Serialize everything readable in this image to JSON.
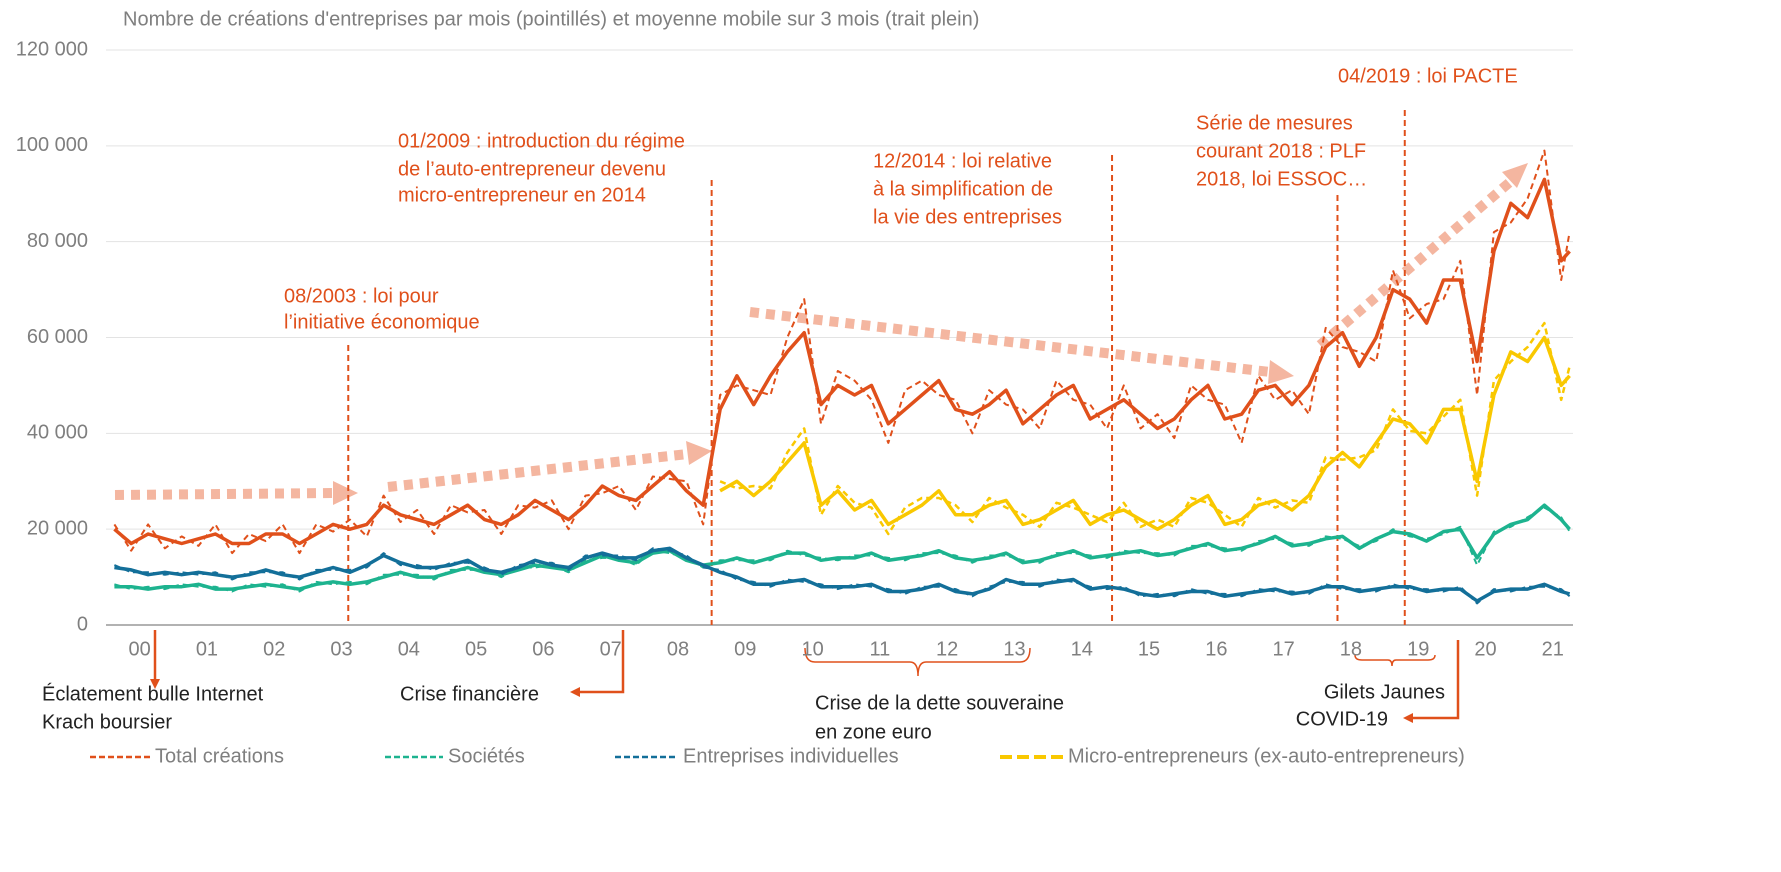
{
  "chart_data": {
    "type": "line",
    "title": "Nombre de créations d'entreprises par mois (pointillés) et moyenne mobile sur 3 mois (trait plein)",
    "x": [
      2000.125,
      2000.375,
      2000.625,
      2000.875,
      2001.125,
      2001.375,
      2001.625,
      2001.875,
      2002.125,
      2002.375,
      2002.625,
      2002.875,
      2003.125,
      2003.375,
      2003.625,
      2003.875,
      2004.125,
      2004.375,
      2004.625,
      2004.875,
      2005.125,
      2005.375,
      2005.625,
      2005.875,
      2006.125,
      2006.375,
      2006.625,
      2006.875,
      2007.125,
      2007.375,
      2007.625,
      2007.875,
      2008.125,
      2008.375,
      2008.625,
      2008.875,
      2009.125,
      2009.375,
      2009.625,
      2009.875,
      2010.125,
      2010.375,
      2010.625,
      2010.875,
      2011.125,
      2011.375,
      2011.625,
      2011.875,
      2012.125,
      2012.375,
      2012.625,
      2012.875,
      2013.125,
      2013.375,
      2013.625,
      2013.875,
      2014.125,
      2014.375,
      2014.625,
      2014.875,
      2015.125,
      2015.375,
      2015.625,
      2015.875,
      2016.125,
      2016.375,
      2016.625,
      2016.875,
      2017.125,
      2017.375,
      2017.625,
      2017.875,
      2018.125,
      2018.375,
      2018.625,
      2018.875,
      2019.125,
      2019.375,
      2019.625,
      2019.875,
      2020.125,
      2020.375,
      2020.625,
      2020.875,
      2021.125,
      2021.375,
      2021.625,
      2021.75
    ],
    "xlim": [
      2000,
      2021.8
    ],
    "xticks": [
      {
        "value": 2000.5,
        "label": "00"
      },
      {
        "value": 2001.5,
        "label": "01"
      },
      {
        "value": 2002.5,
        "label": "02"
      },
      {
        "value": 2003.5,
        "label": "03"
      },
      {
        "value": 2004.5,
        "label": "04"
      },
      {
        "value": 2005.5,
        "label": "05"
      },
      {
        "value": 2006.5,
        "label": "06"
      },
      {
        "value": 2007.5,
        "label": "07"
      },
      {
        "value": 2008.5,
        "label": "08"
      },
      {
        "value": 2009.5,
        "label": "09"
      },
      {
        "value": 2010.5,
        "label": "10"
      },
      {
        "value": 2011.5,
        "label": "11"
      },
      {
        "value": 2012.5,
        "label": "12"
      },
      {
        "value": 2013.5,
        "label": "13"
      },
      {
        "value": 2014.5,
        "label": "14"
      },
      {
        "value": 2015.5,
        "label": "15"
      },
      {
        "value": 2016.5,
        "label": "16"
      },
      {
        "value": 2017.5,
        "label": "17"
      },
      {
        "value": 2018.5,
        "label": "18"
      },
      {
        "value": 2019.5,
        "label": "19"
      },
      {
        "value": 2020.5,
        "label": "20"
      },
      {
        "value": 2021.5,
        "label": "21"
      }
    ],
    "ylim": [
      0,
      120000
    ],
    "yticks": [
      0,
      {
        "value": 20000,
        "label": "20 000"
      },
      {
        "value": 40000,
        "label": "40 000"
      },
      {
        "value": 60000,
        "label": "60 000"
      },
      {
        "value": 80000,
        "label": "80 000"
      },
      {
        "value": 100000,
        "label": "100 000"
      },
      {
        "value": 120000,
        "label": "120 000"
      }
    ],
    "grid": true,
    "series": [
      {
        "name": "Total créations",
        "color": "#e0501b",
        "values": [
          21000,
          15500,
          21000,
          16000,
          18500,
          16500,
          21000,
          15000,
          19000,
          17500,
          21000,
          15000,
          21000,
          19500,
          22000,
          18500,
          27000,
          21500,
          24000,
          19000,
          25000,
          23500,
          24000,
          19000,
          25000,
          24500,
          26000,
          20000,
          27000,
          27500,
          29000,
          24000,
          31000,
          30500,
          30000,
          21000,
          48000,
          50000,
          49000,
          48000,
          60000,
          68000,
          42000,
          53000,
          51000,
          47000,
          38000,
          49000,
          51000,
          48000,
          47000,
          40000,
          49000,
          46000,
          45000,
          41000,
          51000,
          47000,
          46000,
          41000,
          50000,
          41000,
          44000,
          39000,
          50000,
          47000,
          46000,
          38000,
          52000,
          47000,
          49000,
          44000,
          62000,
          58000,
          57000,
          55000,
          74000,
          64000,
          67000,
          68000,
          76000,
          48000,
          82000,
          84000,
          89000,
          99000,
          72000,
          82000
        ],
        "moving_average": [
          20000,
          17000,
          19000,
          18000,
          17000,
          18000,
          19000,
          17000,
          17000,
          19000,
          19000,
          17000,
          19000,
          21000,
          20000,
          21000,
          25000,
          23000,
          22000,
          21000,
          23000,
          25000,
          22000,
          21000,
          23000,
          26000,
          24000,
          22000,
          25000,
          29000,
          27000,
          26000,
          29000,
          32000,
          28000,
          25000,
          45000,
          52000,
          46000,
          52000,
          57000,
          61000,
          46000,
          50000,
          48000,
          50000,
          42000,
          45000,
          48000,
          51000,
          45000,
          44000,
          46000,
          49000,
          42000,
          45000,
          48000,
          50000,
          43000,
          45000,
          47000,
          44000,
          41000,
          43000,
          47000,
          50000,
          43000,
          44000,
          49000,
          50000,
          46000,
          50000,
          58000,
          61000,
          54000,
          60000,
          70000,
          68000,
          63000,
          72000,
          72000,
          55000,
          78000,
          88000,
          85000,
          93000,
          76000,
          78000
        ]
      },
      {
        "name": "Sociétés",
        "color": "#1db38f",
        "values": [
          8500,
          7500,
          8000,
          7500,
          8500,
          8000,
          8000,
          7000,
          8500,
          8000,
          8500,
          7000,
          9000,
          8500,
          9000,
          8500,
          10500,
          10500,
          10500,
          9500,
          11500,
          11500,
          11500,
          10000,
          12000,
          12000,
          12500,
          11000,
          13500,
          14000,
          14000,
          12500,
          15500,
          15000,
          14000,
          12000,
          13500,
          13500,
          13500,
          13500,
          15500,
          14500,
          14000,
          13500,
          14500,
          14500,
          14000,
          13500,
          15000,
          15000,
          14500,
          13000,
          14500,
          14500,
          13500,
          13000,
          15000,
          15000,
          14500,
          14000,
          15500,
          15000,
          15000,
          14500,
          16500,
          16500,
          16000,
          15500,
          17500,
          18000,
          17000,
          16500,
          18500,
          18000,
          16500,
          17500,
          20000,
          18500,
          18000,
          19000,
          20500,
          12500,
          19500,
          20500,
          22500,
          24500,
          22500,
          19500
        ],
        "moving_average": [
          8000,
          8000,
          7500,
          8000,
          8000,
          8500,
          7500,
          7500,
          8000,
          8500,
          8000,
          7500,
          8500,
          9000,
          8500,
          9000,
          10000,
          11000,
          10000,
          10000,
          11000,
          12000,
          11000,
          10500,
          11500,
          12500,
          12000,
          11500,
          13000,
          14500,
          13500,
          13000,
          15000,
          15500,
          13500,
          12500,
          13000,
          14000,
          13000,
          14000,
          15000,
          15000,
          13500,
          14000,
          14000,
          15000,
          13500,
          14000,
          14500,
          15500,
          14000,
          13500,
          14000,
          15000,
          13000,
          13500,
          14500,
          15500,
          14000,
          14500,
          15000,
          15500,
          14500,
          15000,
          16000,
          17000,
          15500,
          16000,
          17000,
          18500,
          16500,
          17000,
          18000,
          18500,
          16000,
          18000,
          19500,
          19000,
          17500,
          19500,
          20000,
          14000,
          19000,
          21000,
          22000,
          25000,
          22000,
          20000
        ]
      },
      {
        "name": "Entreprises individuelles",
        "color": "#136f99",
        "values": [
          12500,
          11000,
          11000,
          10500,
          11000,
          10500,
          11000,
          9500,
          11000,
          11000,
          11000,
          9500,
          11500,
          11500,
          11500,
          12000,
          15000,
          12500,
          12500,
          11500,
          13000,
          13000,
          12000,
          10500,
          12500,
          13000,
          13000,
          11500,
          14500,
          14500,
          14500,
          13500,
          16000,
          15500,
          14500,
          12000,
          11500,
          9500,
          9000,
          8000,
          9500,
          9000,
          8500,
          7500,
          8500,
          8000,
          7500,
          6500,
          8000,
          8000,
          7500,
          6000,
          8000,
          9000,
          9000,
          8000,
          9500,
          9000,
          8000,
          7500,
          8000,
          6000,
          6500,
          6000,
          7500,
          6500,
          6500,
          6000,
          7500,
          7000,
          7000,
          6500,
          8500,
          7500,
          7500,
          7000,
          8500,
          7500,
          7500,
          7000,
          8000,
          4500,
          7500,
          7000,
          8000,
          8000,
          7500,
          6000
        ],
        "moving_average": [
          12000,
          11500,
          10500,
          11000,
          10500,
          11000,
          10500,
          10000,
          10500,
          11500,
          10500,
          10000,
          11000,
          12000,
          11000,
          12500,
          14500,
          13000,
          12000,
          12000,
          12500,
          13500,
          11500,
          11000,
          12000,
          13500,
          12500,
          12000,
          14000,
          15000,
          14000,
          14000,
          15500,
          16000,
          14000,
          12500,
          11000,
          10000,
          8500,
          8500,
          9000,
          9500,
          8000,
          8000,
          8000,
          8500,
          7000,
          7000,
          7500,
          8500,
          7000,
          6500,
          7500,
          9500,
          8500,
          8500,
          9000,
          9500,
          7500,
          8000,
          7500,
          6500,
          6000,
          6500,
          7000,
          7000,
          6000,
          6500,
          7000,
          7500,
          6500,
          7000,
          8000,
          8000,
          7000,
          7500,
          8000,
          8000,
          7000,
          7500,
          7500,
          5000,
          7000,
          7500,
          7500,
          8500,
          7000,
          6500
        ]
      },
      {
        "name": "Micro-entrepreneurs (ex-auto-entrepreneurs)",
        "color": "#f9c800",
        "values": [
          null,
          null,
          null,
          null,
          null,
          null,
          null,
          null,
          null,
          null,
          null,
          null,
          null,
          null,
          null,
          null,
          null,
          null,
          null,
          null,
          null,
          null,
          null,
          null,
          null,
          null,
          null,
          null,
          null,
          null,
          null,
          null,
          null,
          null,
          null,
          null,
          30000,
          28500,
          29000,
          28500,
          36000,
          41000,
          23000,
          29000,
          25500,
          24500,
          19000,
          24500,
          26500,
          26500,
          25000,
          21500,
          26500,
          24500,
          23000,
          20500,
          25500,
          24500,
          23000,
          21500,
          25500,
          20500,
          22000,
          20500,
          26500,
          25500,
          23000,
          20500,
          26500,
          24500,
          26000,
          25500,
          35000,
          34500,
          35000,
          36500,
          45000,
          40500,
          40000,
          43500,
          47000,
          27000,
          51000,
          55000,
          58000,
          63000,
          47000,
          54000
        ],
        "moving_average": [
          null,
          null,
          null,
          null,
          null,
          null,
          null,
          null,
          null,
          null,
          null,
          null,
          null,
          null,
          null,
          null,
          null,
          null,
          null,
          null,
          null,
          null,
          null,
          null,
          null,
          null,
          null,
          null,
          null,
          null,
          null,
          null,
          null,
          null,
          null,
          null,
          28000,
          30000,
          27000,
          30000,
          34000,
          38000,
          25000,
          28000,
          24000,
          26000,
          21000,
          23000,
          25000,
          28000,
          23000,
          23000,
          25000,
          26000,
          21000,
          22000,
          24000,
          26000,
          21000,
          23000,
          24000,
          22000,
          20000,
          22000,
          25000,
          27000,
          21000,
          22000,
          25000,
          26000,
          24000,
          27000,
          33000,
          36000,
          33000,
          38000,
          43000,
          42000,
          38000,
          45000,
          45000,
          30000,
          48000,
          57000,
          55000,
          60000,
          50000,
          52000
        ]
      }
    ],
    "annotations": [
      {
        "x": 2003.6,
        "lines": [
          "08/2003 : loi pour",
          "l’initiative économique"
        ]
      },
      {
        "x": 2009.0,
        "lines": [
          "01/2009 : introduction du régime",
          "de l’auto-entrepreneur devenu",
          "micro-entrepreneur en 2014"
        ]
      },
      {
        "x": 2014.95,
        "lines": [
          "12/2014 : loi relative",
          "à la simplification de",
          "la vie des entreprises"
        ]
      },
      {
        "x": 2018.3,
        "lines": [
          "Série de mesures",
          "courant 2018 : PLF",
          "2018, loi ESSOC…"
        ]
      },
      {
        "x": 2019.3,
        "lines": [
          "04/2019 : loi PACTE"
        ]
      }
    ],
    "events": [
      {
        "lines": [
          "Éclatement bulle Internet",
          "Krach boursier"
        ]
      },
      {
        "lines": [
          "Crise financière"
        ]
      },
      {
        "lines": [
          "Crise de la dette souveraine",
          "en zone euro"
        ]
      },
      {
        "lines": [
          "Gilets Jaunes",
          "COVID-19"
        ]
      }
    ]
  }
}
